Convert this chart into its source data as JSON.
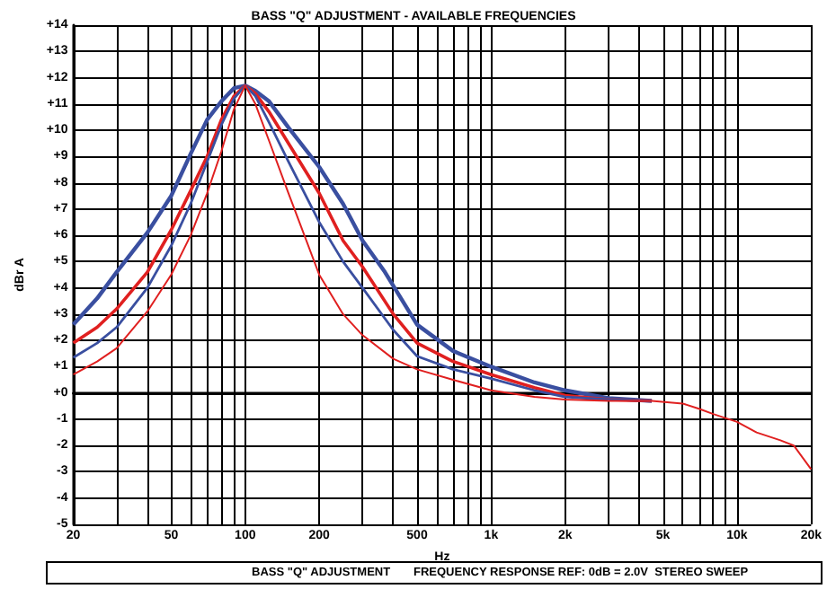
{
  "chart_data": {
    "type": "line",
    "title": "BASS \"Q\" ADJUSTMENT - AVAILABLE FREQUENCIES",
    "xlabel": "Hz",
    "ylabel": "dBr A",
    "log": "x",
    "grid": true,
    "line_style": "solid",
    "xlim": [
      20,
      20000
    ],
    "xticks": [
      20,
      {
        "value": 30,
        "label": null
      },
      {
        "value": 40,
        "label": null
      },
      50,
      {
        "value": 60,
        "label": null
      },
      {
        "value": 70,
        "label": null
      },
      {
        "value": 80,
        "label": null
      },
      {
        "value": 90,
        "label": null
      },
      100,
      200,
      {
        "value": 300,
        "label": null
      },
      {
        "value": 400,
        "label": null
      },
      500,
      {
        "value": 600,
        "label": null
      },
      {
        "value": 700,
        "label": null
      },
      {
        "value": 800,
        "label": null
      },
      {
        "value": 900,
        "label": null
      },
      {
        "value": 1000,
        "label": "1k"
      },
      {
        "value": 2000,
        "label": "2k"
      },
      {
        "value": 3000,
        "label": null
      },
      {
        "value": 4000,
        "label": null
      },
      {
        "value": 5000,
        "label": "5k"
      },
      {
        "value": 6000,
        "label": null
      },
      {
        "value": 7000,
        "label": null
      },
      {
        "value": 8000,
        "label": null
      },
      {
        "value": 9000,
        "label": null
      },
      {
        "value": 10000,
        "label": "10k"
      },
      {
        "value": 20000,
        "label": "20k"
      }
    ],
    "ylim": [
      -5,
      14
    ],
    "yticks": [
      {
        "value": -5,
        "label": "-5"
      },
      {
        "value": -4,
        "label": "-4"
      },
      {
        "value": -3,
        "label": "-3"
      },
      {
        "value": -2,
        "label": "-2"
      },
      {
        "value": -1,
        "label": "-1"
      },
      {
        "value": 0,
        "label": "+0"
      },
      {
        "value": 1,
        "label": "+1"
      },
      {
        "value": 2,
        "label": "+2"
      },
      {
        "value": 3,
        "label": "+3"
      },
      {
        "value": 4,
        "label": "+4"
      },
      {
        "value": 5,
        "label": "+5"
      },
      {
        "value": 6,
        "label": "+6"
      },
      {
        "value": 7,
        "label": "+7"
      },
      {
        "value": 8,
        "label": "+8"
      },
      {
        "value": 9,
        "label": "+9"
      },
      {
        "value": 10,
        "label": "+10"
      },
      {
        "value": 11,
        "label": "+11"
      },
      {
        "value": 12,
        "label": "+12"
      },
      {
        "value": 13,
        "label": "+13"
      },
      {
        "value": 14,
        "label": "+14"
      }
    ],
    "annotations": [
      "BASS \"Q\" ADJUSTMENT",
      "FREQUENCY RESPONSE REF: 0dB = 2.0V  STEREO SWEEP"
    ],
    "series": [
      {
        "color": "#3a4fa0",
        "x": [
          20,
          25,
          30,
          40,
          50,
          60,
          70,
          80,
          90,
          100,
          110,
          125,
          150,
          200,
          250,
          300,
          370,
          450,
          500,
          700,
          1000,
          1500,
          2000,
          3000,
          4500
        ],
        "values": [
          2.6,
          3.6,
          4.6,
          6.1,
          7.5,
          9.1,
          10.4,
          11.1,
          11.6,
          11.7,
          11.5,
          11.1,
          10.1,
          8.6,
          7.2,
          5.8,
          4.6,
          3.3,
          2.6,
          1.6,
          1.0,
          0.4,
          0.1,
          -0.2,
          -0.3
        ]
      },
      {
        "color": "#e02020",
        "x": [
          20,
          25,
          30,
          40,
          50,
          60,
          70,
          80,
          90,
          100,
          110,
          125,
          150,
          200,
          250,
          300,
          400,
          500,
          700,
          1000,
          1500,
          2000,
          3000,
          4500
        ],
        "values": [
          1.9,
          2.5,
          3.2,
          4.6,
          6.2,
          7.7,
          9.0,
          10.4,
          11.3,
          11.7,
          11.4,
          10.7,
          9.5,
          7.6,
          5.8,
          4.8,
          3.0,
          1.9,
          1.2,
          0.7,
          0.2,
          -0.1,
          -0.25,
          -0.3
        ]
      },
      {
        "color": "#3a4fa0",
        "x": [
          20,
          25,
          30,
          40,
          50,
          60,
          70,
          80,
          90,
          100,
          110,
          125,
          150,
          200,
          250,
          300,
          400,
          500,
          700,
          1000,
          1500,
          2000,
          3000,
          4500
        ],
        "values": [
          1.35,
          1.9,
          2.5,
          4.0,
          5.6,
          7.2,
          8.8,
          10.2,
          11.2,
          11.7,
          11.3,
          10.3,
          8.8,
          6.5,
          5.0,
          4.0,
          2.4,
          1.4,
          0.9,
          0.55,
          0.1,
          -0.15,
          -0.25,
          -0.3
        ]
      },
      {
        "color": "#e02020",
        "x": [
          20,
          25,
          30,
          40,
          50,
          60,
          70,
          80,
          90,
          100,
          110,
          125,
          150,
          200,
          250,
          300,
          400,
          500,
          700,
          1000,
          1500,
          2000,
          3000,
          4500,
          6000,
          7000,
          8000,
          10000,
          12000,
          15000,
          17000,
          20000
        ],
        "values": [
          0.7,
          1.2,
          1.7,
          3.1,
          4.5,
          6.0,
          7.6,
          9.2,
          10.8,
          11.7,
          11.0,
          9.6,
          7.6,
          4.5,
          3.0,
          2.2,
          1.3,
          0.9,
          0.5,
          0.1,
          -0.15,
          -0.25,
          -0.3,
          -0.3,
          -0.4,
          -0.6,
          -0.8,
          -1.1,
          -1.5,
          -1.8,
          -2.0,
          -2.9
        ]
      }
    ]
  }
}
